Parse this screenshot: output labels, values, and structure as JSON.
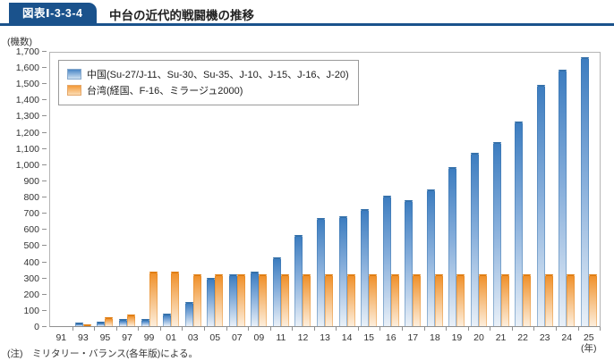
{
  "header": {
    "badge": "図表Ⅰ-3-3-4",
    "title": "中台の近代的戦闘機の推移"
  },
  "note": "(注)　ミリタリー・バランス(各年版)による。",
  "colors": {
    "accent_blue": "#1a528c",
    "china_bar_top": "#3d7dc0",
    "china_bar_bottom": "#e9f0f8",
    "taiwan_bar_top": "#f0912c",
    "taiwan_bar_bottom": "#fdeedc",
    "plot_border": "#b5b5b5",
    "axis": "#8f8f8f"
  },
  "chart_data": {
    "type": "bar",
    "title": "中台の近代的戦闘機の推移",
    "y_axis_unit": "(機数)",
    "x_axis_unit": "(年)",
    "ylim": [
      0,
      1700
    ],
    "y_tick_step": 100,
    "y_tick_labels": [
      "0",
      "100",
      "200",
      "300",
      "400",
      "500",
      "600",
      "700",
      "800",
      "900",
      "1,000",
      "1,100",
      "1,200",
      "1,300",
      "1,400",
      "1,500",
      "1,600",
      "1,700"
    ],
    "grid": false,
    "legend_position": "top-left-inside",
    "categories": [
      "91",
      "93",
      "95",
      "97",
      "99",
      "01",
      "03",
      "05",
      "07",
      "09",
      "11",
      "12",
      "13",
      "14",
      "15",
      "16",
      "17",
      "18",
      "19",
      "20",
      "21",
      "22",
      "23",
      "24",
      "25"
    ],
    "series": [
      {
        "name": "中国(Su-27/J-11、Su-30、Su-35、J-10、J-15、J-16、J-20)",
        "key": "china",
        "values": [
          0,
          20,
          30,
          45,
          45,
          80,
          150,
          300,
          325,
          340,
          430,
          565,
          670,
          685,
          730,
          810,
          785,
          850,
          990,
          1080,
          1145,
          1270,
          1500,
          1595,
          1670
        ]
      },
      {
        "name": "台湾(経国、F-16、ミラージュ2000)",
        "key": "taiwan",
        "values": [
          0,
          10,
          55,
          75,
          340,
          340,
          325,
          325,
          325,
          325,
          325,
          325,
          325,
          325,
          325,
          325,
          325,
          325,
          325,
          325,
          325,
          325,
          325,
          325,
          325
        ]
      }
    ]
  }
}
